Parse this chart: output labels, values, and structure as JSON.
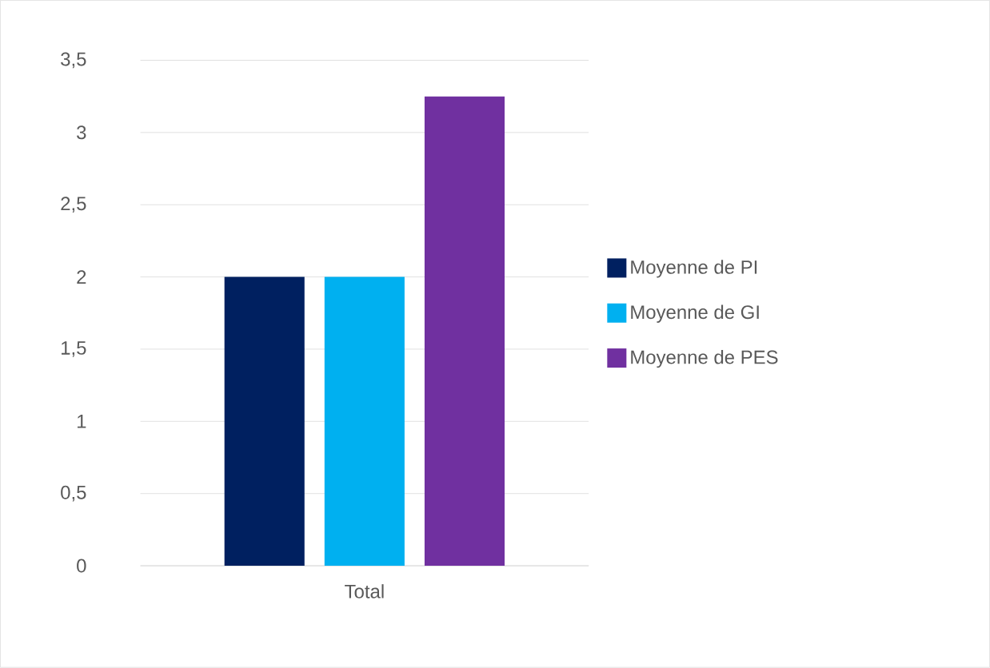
{
  "chart_data": {
    "type": "bar",
    "categories": [
      "Total"
    ],
    "series": [
      {
        "name": "Moyenne de PI",
        "color": "#002060",
        "values": [
          2
        ]
      },
      {
        "name": "Moyenne de GI",
        "color": "#00b0f0",
        "values": [
          2
        ]
      },
      {
        "name": "Moyenne de PES",
        "color": "#7030a0",
        "values": [
          3.25
        ]
      }
    ],
    "ylim": [
      0,
      3.5
    ],
    "yticks": [
      0,
      {
        "value": 0.5,
        "label": "0,5"
      },
      1,
      {
        "value": 1.5,
        "label": "1,5"
      },
      2,
      {
        "value": 2.5,
        "label": "2,5"
      },
      3,
      {
        "value": 3.5,
        "label": "3,5"
      }
    ],
    "grid": "y",
    "legend": "right"
  }
}
